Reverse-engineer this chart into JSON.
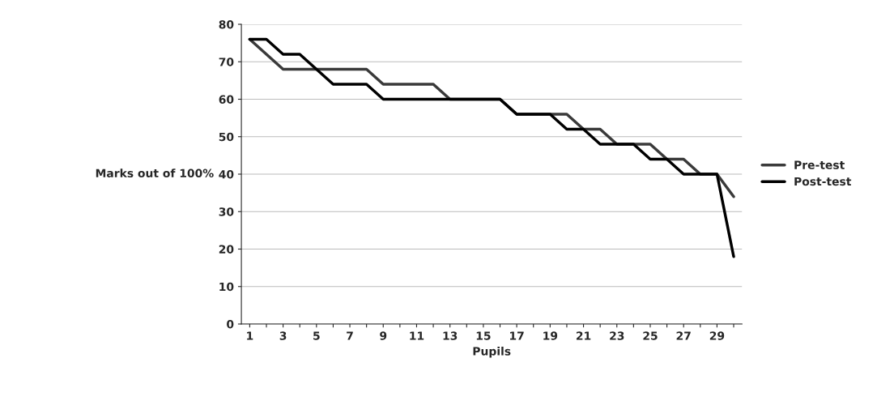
{
  "chart_data": {
    "type": "line",
    "xlabel": "Pupils",
    "ylabel": "Marks out of 100%",
    "categories": [
      "1",
      null,
      "3",
      null,
      "5",
      null,
      "7",
      null,
      "9",
      null,
      "11",
      null,
      "13",
      null,
      "15",
      null,
      "17",
      null,
      "19",
      null,
      "21",
      null,
      "23",
      null,
      "25",
      null,
      "27",
      null,
      "29",
      null
    ],
    "series": [
      {
        "name": "Pre-test",
        "color": "#3a3a3a",
        "values": [
          76,
          72,
          68,
          68,
          68,
          68,
          68,
          68,
          64,
          64,
          64,
          64,
          60,
          60,
          60,
          60,
          56,
          56,
          56,
          56,
          52,
          52,
          48,
          48,
          48,
          44,
          44,
          40,
          40,
          34
        ]
      },
      {
        "name": "Post-test",
        "color": "#000000",
        "values": [
          76,
          76,
          72,
          72,
          68,
          64,
          64,
          64,
          60,
          60,
          60,
          60,
          60,
          60,
          60,
          60,
          56,
          56,
          56,
          52,
          52,
          48,
          48,
          48,
          44,
          44,
          40,
          40,
          40,
          18
        ]
      }
    ],
    "ylim": [
      0,
      80
    ],
    "yticks": [
      0,
      10,
      20,
      30,
      40,
      50,
      60,
      70,
      80
    ],
    "grid": "y",
    "legend": "right",
    "marker": "none",
    "line_style": "solid"
  }
}
